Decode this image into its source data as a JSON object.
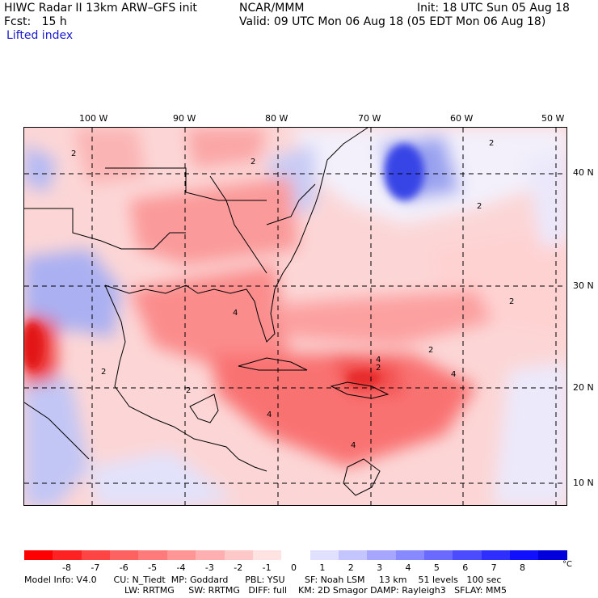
{
  "header": {
    "model_title": "HIWC Radar II 13km ARW–GFS init",
    "org": "NCAR/MMM",
    "init": "Init: 18 UTC Sun 05 Aug 18",
    "fcst": "Fcst:   15 h",
    "valid": "Valid: 09 UTC Mon 06 Aug 18 (05 EDT Mon 06 Aug 18)",
    "field": "Lifted index"
  },
  "map": {
    "lon_labels": [
      "100 W",
      "90 W",
      "80 W",
      "70 W",
      "60 W",
      "50 W"
    ],
    "lat_labels": [
      "40 N",
      "30 N",
      "20 N",
      "10 N"
    ],
    "contour_labels": [
      "2",
      "2",
      "2",
      "2",
      "2",
      "2",
      "2",
      "4",
      "4",
      "4",
      "4",
      "4",
      "2",
      "2"
    ]
  },
  "colorbar": {
    "min": -9,
    "max": 9,
    "ticks": [
      "-8",
      "-7",
      "-6",
      "-5",
      "-4",
      "-3",
      "-2",
      "-1",
      "0",
      "1",
      "2",
      "3",
      "4",
      "5",
      "6",
      "7",
      "8"
    ],
    "unit": "°C",
    "colors": [
      "#ff0000",
      "#ff2222",
      "#ff4444",
      "#ff6060",
      "#ff7b7b",
      "#ff9595",
      "#ffafaf",
      "#ffc8c8",
      "#ffe2e2",
      "#ffffff",
      "#e1e1ff",
      "#c4c4ff",
      "#a6a6ff",
      "#8888ff",
      "#6a6aff",
      "#4c4cff",
      "#2e2eff",
      "#1010ff",
      "#0000dd"
    ]
  },
  "footer": {
    "line1": "Model Info: V4.0      CU: N_Tiedt  MP: Goddard      PBL: YSU       SF: Noah LSM     13 km    51 levels   100 sec",
    "line2": "LW: RRTMG     SW: RRTMG   DIFF: full    KM: 2D Smagor DAMP: Rayleigh3   SFLAY: MM5"
  }
}
